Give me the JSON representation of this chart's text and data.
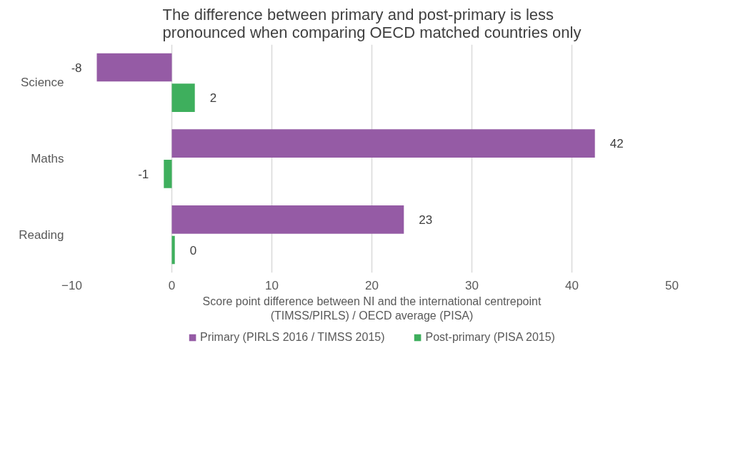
{
  "chart_data": {
    "type": "bar",
    "orientation": "horizontal",
    "title": "The difference between primary and post-primary is less\npronounced when comparing OECD matched countries only",
    "xlabel": "Score point difference between NI and the international centrepoint\n(TIMSS/PIRLS) / OECD average (PISA)",
    "categories": [
      "Science",
      "Maths",
      "Reading"
    ],
    "series": [
      {
        "name": "Primary (PIRLS 2016 / TIMSS 2015)",
        "color": "#955ba5",
        "values": [
          -7.5,
          42.3,
          23.2
        ],
        "value_labels": [
          "-8",
          "42",
          "23"
        ]
      },
      {
        "name": "Post-primary (PISA 2015)",
        "color": "#3eaf5d",
        "values": [
          2.3,
          -0.8,
          0.3
        ],
        "value_labels": [
          "2",
          "-1",
          "0"
        ]
      }
    ],
    "xlim": [
      -10,
      50
    ],
    "xticks": [
      -10,
      0,
      10,
      20,
      30,
      40,
      50
    ],
    "grid": "x",
    "legend": "bottom"
  }
}
